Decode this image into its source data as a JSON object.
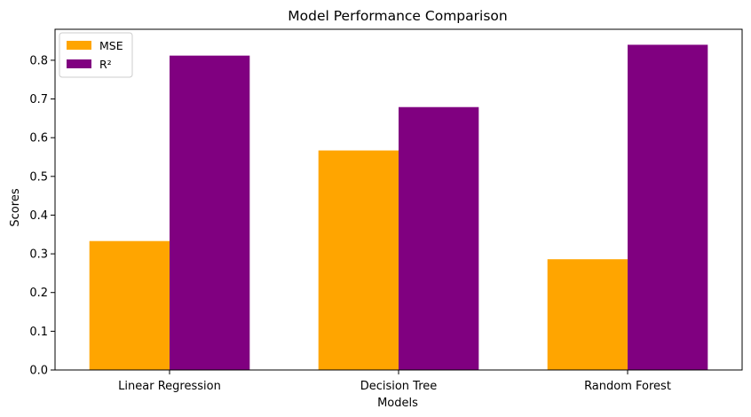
{
  "chart_data": {
    "type": "bar",
    "title": "Model Performance Comparison",
    "xlabel": "Models",
    "ylabel": "Scores",
    "categories": [
      "Linear Regression",
      "Decision Tree",
      "Random Forest"
    ],
    "series": [
      {
        "name": "MSE",
        "color": "#ffa500",
        "values": [
          0.333,
          0.567,
          0.286
        ]
      },
      {
        "name": "R²",
        "color": "#800080",
        "values": [
          0.812,
          0.679,
          0.84
        ]
      }
    ],
    "ylim": [
      0,
      0.88
    ],
    "yticks": [
      "0.0",
      "0.1",
      "0.2",
      "0.3",
      "0.4",
      "0.5",
      "0.6",
      "0.7",
      "0.8"
    ],
    "grid": false,
    "legend_position": "top-left"
  }
}
